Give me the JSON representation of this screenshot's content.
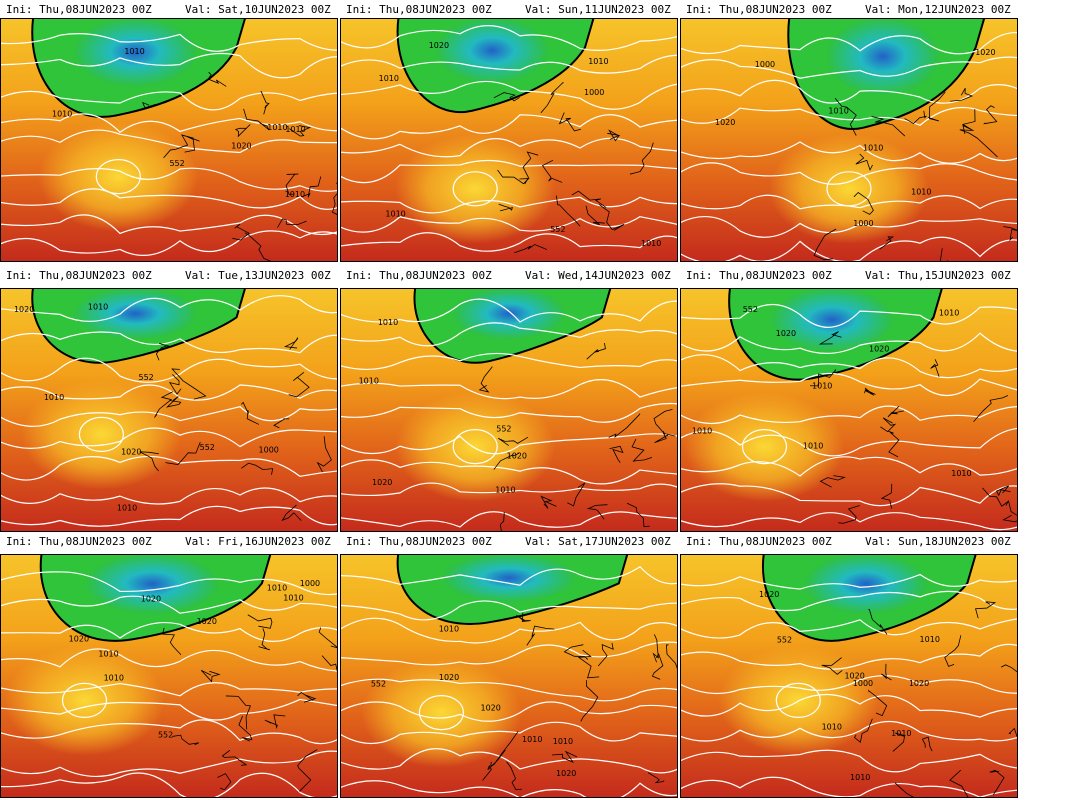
{
  "panels": [
    {
      "ini": "Ini: Thu,08JUN2023 00Z",
      "valid": "Val: Sat,10JUN2023 00Z",
      "contour_labels": [
        "1020",
        "552",
        "1010",
        "1010",
        "1010",
        "1010",
        "1010"
      ]
    },
    {
      "ini": "Ini: Thu,08JUN2023 00Z",
      "valid": "Val: Sun,11JUN2023 00Z",
      "contour_labels": [
        "1010",
        "1020",
        "1000",
        "552",
        "1010",
        "1010",
        "1010"
      ]
    },
    {
      "ini": "Ini: Thu,08JUN2023 00Z",
      "valid": "Val: Mon,12JUN2023 00Z",
      "contour_labels": [
        "1020",
        "1010",
        "1000",
        "1010",
        "1000",
        "1010",
        "1020"
      ]
    },
    {
      "ini": "Ini: Thu,08JUN2023 00Z",
      "valid": "Val: Tue,13JUN2023 00Z",
      "contour_labels": [
        "1010",
        "1000",
        "552",
        "1010",
        "1020",
        "552",
        "1010",
        "1020"
      ]
    },
    {
      "ini": "Ini: Thu,08JUN2023 00Z",
      "valid": "Val: Wed,14JUN2023 00Z",
      "contour_labels": [
        "1010",
        "552",
        "1010",
        "1020",
        "1010",
        "1020"
      ]
    },
    {
      "ini": "Ini: Thu,08JUN2023 00Z",
      "valid": "Val: Thu,15JUN2023 00Z",
      "contour_labels": [
        "1010",
        "552",
        "1010",
        "1020",
        "1010",
        "1020",
        "1010",
        "1010"
      ]
    },
    {
      "ini": "Ini: Thu,08JUN2023 00Z",
      "valid": "Val: Fri,16JUN2023 00Z",
      "contour_labels": [
        "1000",
        "1010",
        "1010",
        "552",
        "1020",
        "1010",
        "1020",
        "1020",
        "1010"
      ]
    },
    {
      "ini": "Ini: Thu,08JUN2023 00Z",
      "valid": "Val: Sat,17JUN2023 00Z",
      "contour_labels": [
        "1020",
        "1010",
        "552",
        "1010",
        "1020",
        "1010",
        "1020"
      ]
    },
    {
      "ini": "Ini: Thu,08JUN2023 00Z",
      "valid": "Val: Sun,18JUN2023 00Z",
      "contour_labels": [
        "1010",
        "1020",
        "1020",
        "552",
        "1000",
        "1010",
        "1010",
        "1020",
        "1010"
      ]
    }
  ]
}
